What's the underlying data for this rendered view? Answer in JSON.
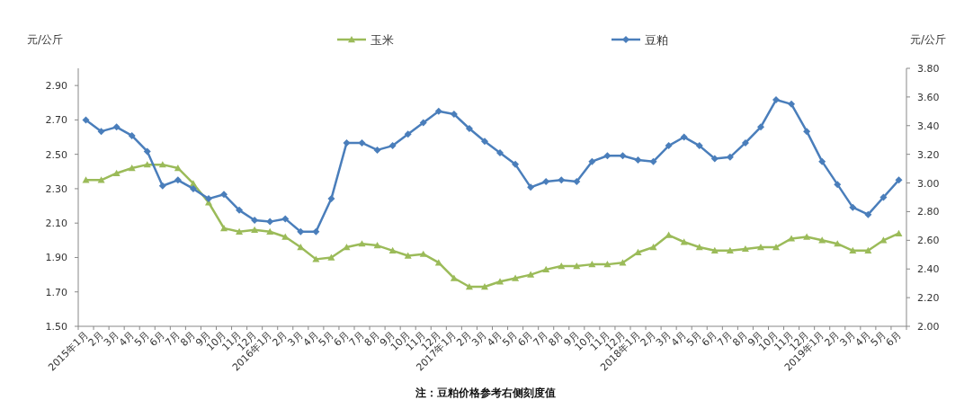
{
  "chart_data": {
    "type": "line",
    "categories": [
      "2015年1月",
      "2月",
      "3月",
      "4月",
      "5月",
      "6月",
      "7月",
      "8月",
      "9月",
      "10月",
      "11月",
      "12月",
      "2016年1月",
      "2月",
      "3月",
      "4月",
      "5月",
      "6月",
      "7月",
      "8月",
      "9月",
      "10月",
      "11月",
      "12月",
      "2017年1月",
      "2月",
      "3月",
      "4月",
      "5月",
      "6月",
      "7月",
      "8月",
      "9月",
      "10月",
      "11月",
      "12月",
      "2018年1月",
      "2月",
      "3月",
      "4月",
      "5月",
      "6月",
      "7月",
      "8月",
      "9月",
      "10月",
      "11月",
      "12月",
      "2019年1月",
      "2月",
      "3月",
      "4月",
      "5月",
      "6月"
    ],
    "series": [
      {
        "name": "玉米",
        "color": "#9bbb59",
        "marker": "triangle",
        "values": [
          2.35,
          2.35,
          2.39,
          2.42,
          2.44,
          2.44,
          2.42,
          2.33,
          2.22,
          2.07,
          2.05,
          2.06,
          2.05,
          2.02,
          1.96,
          1.89,
          1.9,
          1.96,
          1.98,
          1.97,
          1.94,
          1.91,
          1.92,
          1.87,
          1.78,
          1.73,
          1.73,
          1.76,
          1.78,
          1.8,
          1.83,
          1.85,
          1.85,
          1.86,
          1.86,
          1.87,
          1.93,
          1.96,
          2.03,
          1.99,
          1.96,
          1.94,
          1.94,
          1.95,
          1.96,
          1.96,
          2.01,
          2.02,
          2.0,
          1.98,
          1.94,
          1.94,
          2.0,
          2.04
        ]
      },
      {
        "name": "豆粕",
        "color": "#4a7ebb",
        "marker": "diamond",
        "axis": "y2",
        "values": [
          3.44,
          3.36,
          3.39,
          3.33,
          3.22,
          2.98,
          3.02,
          2.96,
          2.89,
          2.92,
          2.81,
          2.74,
          2.73,
          2.75,
          2.66,
          2.66,
          2.89,
          3.28,
          3.28,
          3.23,
          3.26,
          3.34,
          3.42,
          3.5,
          3.48,
          3.38,
          3.29,
          3.21,
          3.13,
          2.97,
          3.01,
          3.02,
          3.01,
          3.15,
          3.19,
          3.19,
          3.16,
          3.15,
          3.26,
          3.32,
          3.26,
          3.17,
          3.18,
          3.28,
          3.39,
          3.58,
          3.55,
          3.36,
          3.15,
          2.99,
          2.83,
          2.78,
          2.9,
          3.02
        ]
      }
    ],
    "ylabel": "元/公斤",
    "y2label": "元/公斤",
    "ylim": [
      1.5,
      3.0
    ],
    "yticks": [
      {
        "value": 1.5,
        "label": "1.50"
      },
      {
        "value": 1.7,
        "label": "1.70"
      },
      {
        "value": 1.9,
        "label": "1.90"
      },
      {
        "value": 2.1,
        "label": "2.10"
      },
      {
        "value": 2.3,
        "label": "2.30"
      },
      {
        "value": 2.5,
        "label": "2.50"
      },
      {
        "value": 2.7,
        "label": "2.70"
      },
      {
        "value": 2.9,
        "label": "2.90"
      }
    ],
    "y2lim": [
      2.0,
      3.8
    ],
    "y2ticks": [
      {
        "value": 2.0,
        "label": "2.00"
      },
      {
        "value": 2.2,
        "label": "2.20"
      },
      {
        "value": 2.4,
        "label": "2.40"
      },
      {
        "value": 2.6,
        "label": "2.60"
      },
      {
        "value": 2.8,
        "label": "2.80"
      },
      {
        "value": 3.0,
        "label": "3.00"
      },
      {
        "value": 3.2,
        "label": "3.20"
      },
      {
        "value": 3.4,
        "label": "3.40"
      },
      {
        "value": 3.6,
        "label": "3.60"
      },
      {
        "value": 3.8,
        "label": "3.80"
      }
    ],
    "legend": "top",
    "grid": false,
    "annotations": [
      "注：豆粕价格参考右侧刻度值"
    ]
  }
}
